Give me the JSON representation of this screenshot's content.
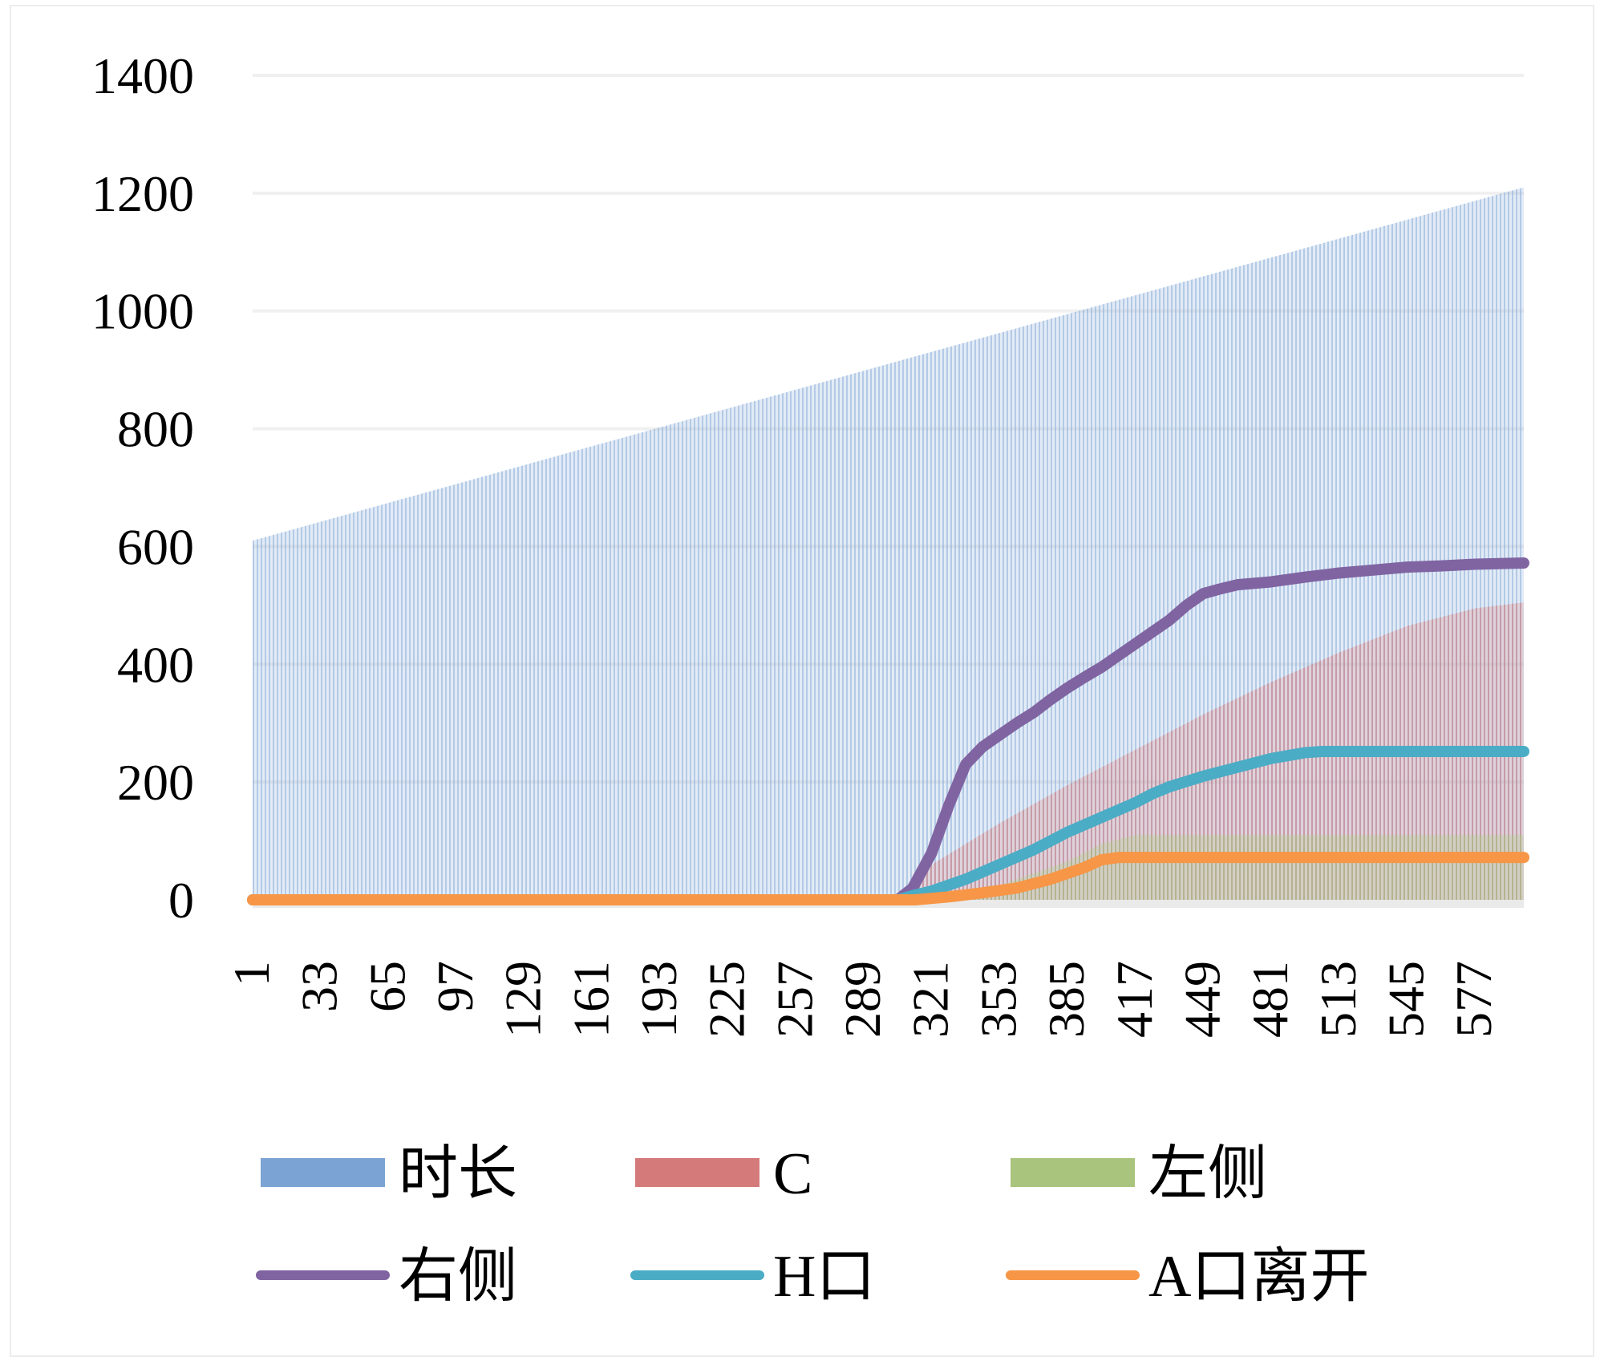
{
  "chart_data": {
    "type": "area",
    "title": "",
    "xlabel": "",
    "ylabel": "",
    "ylim": [
      0,
      1400
    ],
    "yticks": [
      0,
      200,
      400,
      600,
      800,
      1000,
      1200,
      1400
    ],
    "xlim": [
      1,
      600
    ],
    "xticks": [
      1,
      33,
      65,
      97,
      129,
      161,
      193,
      225,
      257,
      289,
      321,
      353,
      385,
      417,
      449,
      481,
      513,
      545,
      577
    ],
    "grid": true,
    "legend_position": "bottom",
    "series": [
      {
        "name": "时长",
        "kind": "area",
        "color": "#7ba3d4",
        "points": [
          [
            1,
            610
          ],
          [
            600,
            1210
          ]
        ]
      },
      {
        "name": "C",
        "kind": "area",
        "color": "#d47a7a",
        "points": [
          [
            1,
            0
          ],
          [
            306,
            0
          ],
          [
            310,
            20
          ],
          [
            321,
            60
          ],
          [
            353,
            130
          ],
          [
            385,
            195
          ],
          [
            417,
            255
          ],
          [
            449,
            315
          ],
          [
            481,
            370
          ],
          [
            513,
            420
          ],
          [
            545,
            465
          ],
          [
            577,
            495
          ],
          [
            600,
            505
          ]
        ]
      },
      {
        "name": "左侧",
        "kind": "area",
        "color": "#a9c47c",
        "points": [
          [
            1,
            0
          ],
          [
            330,
            0
          ],
          [
            353,
            25
          ],
          [
            385,
            65
          ],
          [
            401,
            95
          ],
          [
            417,
            110
          ],
          [
            600,
            110
          ]
        ]
      },
      {
        "name": "右侧",
        "kind": "line",
        "color": "#8064a2",
        "points": [
          [
            1,
            0
          ],
          [
            305,
            0
          ],
          [
            312,
            20
          ],
          [
            321,
            80
          ],
          [
            329,
            160
          ],
          [
            337,
            230
          ],
          [
            345,
            260
          ],
          [
            353,
            280
          ],
          [
            361,
            300
          ],
          [
            369,
            318
          ],
          [
            377,
            340
          ],
          [
            385,
            360
          ],
          [
            393,
            378
          ],
          [
            401,
            395
          ],
          [
            409,
            415
          ],
          [
            417,
            435
          ],
          [
            425,
            455
          ],
          [
            433,
            475
          ],
          [
            441,
            500
          ],
          [
            449,
            520
          ],
          [
            457,
            528
          ],
          [
            465,
            535
          ],
          [
            481,
            540
          ],
          [
            497,
            548
          ],
          [
            513,
            555
          ],
          [
            529,
            560
          ],
          [
            545,
            565
          ],
          [
            561,
            567
          ],
          [
            577,
            570
          ],
          [
            600,
            572
          ]
        ]
      },
      {
        "name": "H口",
        "kind": "line",
        "color": "#4bacc6",
        "points": [
          [
            1,
            0
          ],
          [
            305,
            0
          ],
          [
            313,
            8
          ],
          [
            321,
            15
          ],
          [
            337,
            35
          ],
          [
            353,
            60
          ],
          [
            369,
            85
          ],
          [
            385,
            115
          ],
          [
            401,
            140
          ],
          [
            417,
            165
          ],
          [
            425,
            180
          ],
          [
            433,
            192
          ],
          [
            449,
            210
          ],
          [
            465,
            225
          ],
          [
            481,
            240
          ],
          [
            497,
            250
          ],
          [
            505,
            252
          ],
          [
            600,
            252
          ]
        ]
      },
      {
        "name": "A口离开",
        "kind": "line",
        "color": "#f79646",
        "points": [
          [
            1,
            0
          ],
          [
            313,
            0
          ],
          [
            329,
            5
          ],
          [
            345,
            12
          ],
          [
            361,
            20
          ],
          [
            377,
            35
          ],
          [
            393,
            55
          ],
          [
            401,
            68
          ],
          [
            409,
            72
          ],
          [
            600,
            72
          ]
        ]
      }
    ]
  }
}
